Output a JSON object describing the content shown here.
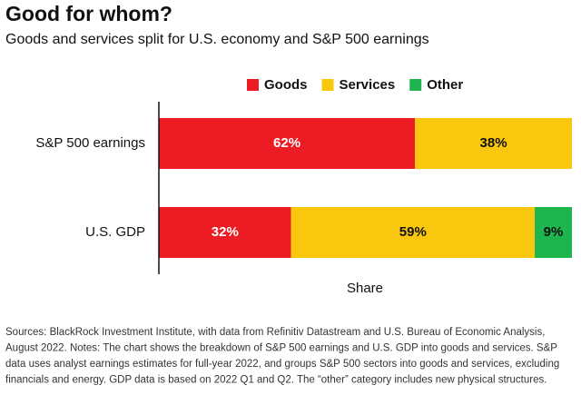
{
  "chart_data": {
    "type": "stacked_barh",
    "title": "Good for whom?",
    "subtitle": "Goods and services split for U.S. economy and S&P 500 earnings",
    "x_label": "Share",
    "categories": [
      "S&P 500 earnings",
      "U.S. GDP"
    ],
    "series": [
      {
        "name": "Goods",
        "color": "#ec1c24",
        "values": [
          62,
          32
        ],
        "value_labels": [
          "62%",
          "32%"
        ]
      },
      {
        "name": "Services",
        "color": "#f9c80e",
        "values": [
          38,
          59
        ],
        "value_labels": [
          "38%",
          "59%"
        ]
      },
      {
        "name": "Other",
        "color": "#1eb54f",
        "values": [
          null,
          9
        ],
        "value_labels": [
          null,
          "9%"
        ]
      }
    ],
    "xlim": [
      0,
      100
    ],
    "notes": [
      "Sources: BlackRock Investment Institute, with data from Refinitiv Datastream and U.S. Bureau of Economic Analysis,",
      "August 2022. Notes: The chart shows the breakdown of S&P 500 earnings and U.S. GDP into goods and services. S&P",
      "data uses analyst earnings estimates for full-year 2022, and groups S&P 500 sectors into goods and services, excluding",
      "financials and energy. GDP data is based on 2022 Q1 and Q2. The “other” category includes new physical structures."
    ]
  }
}
